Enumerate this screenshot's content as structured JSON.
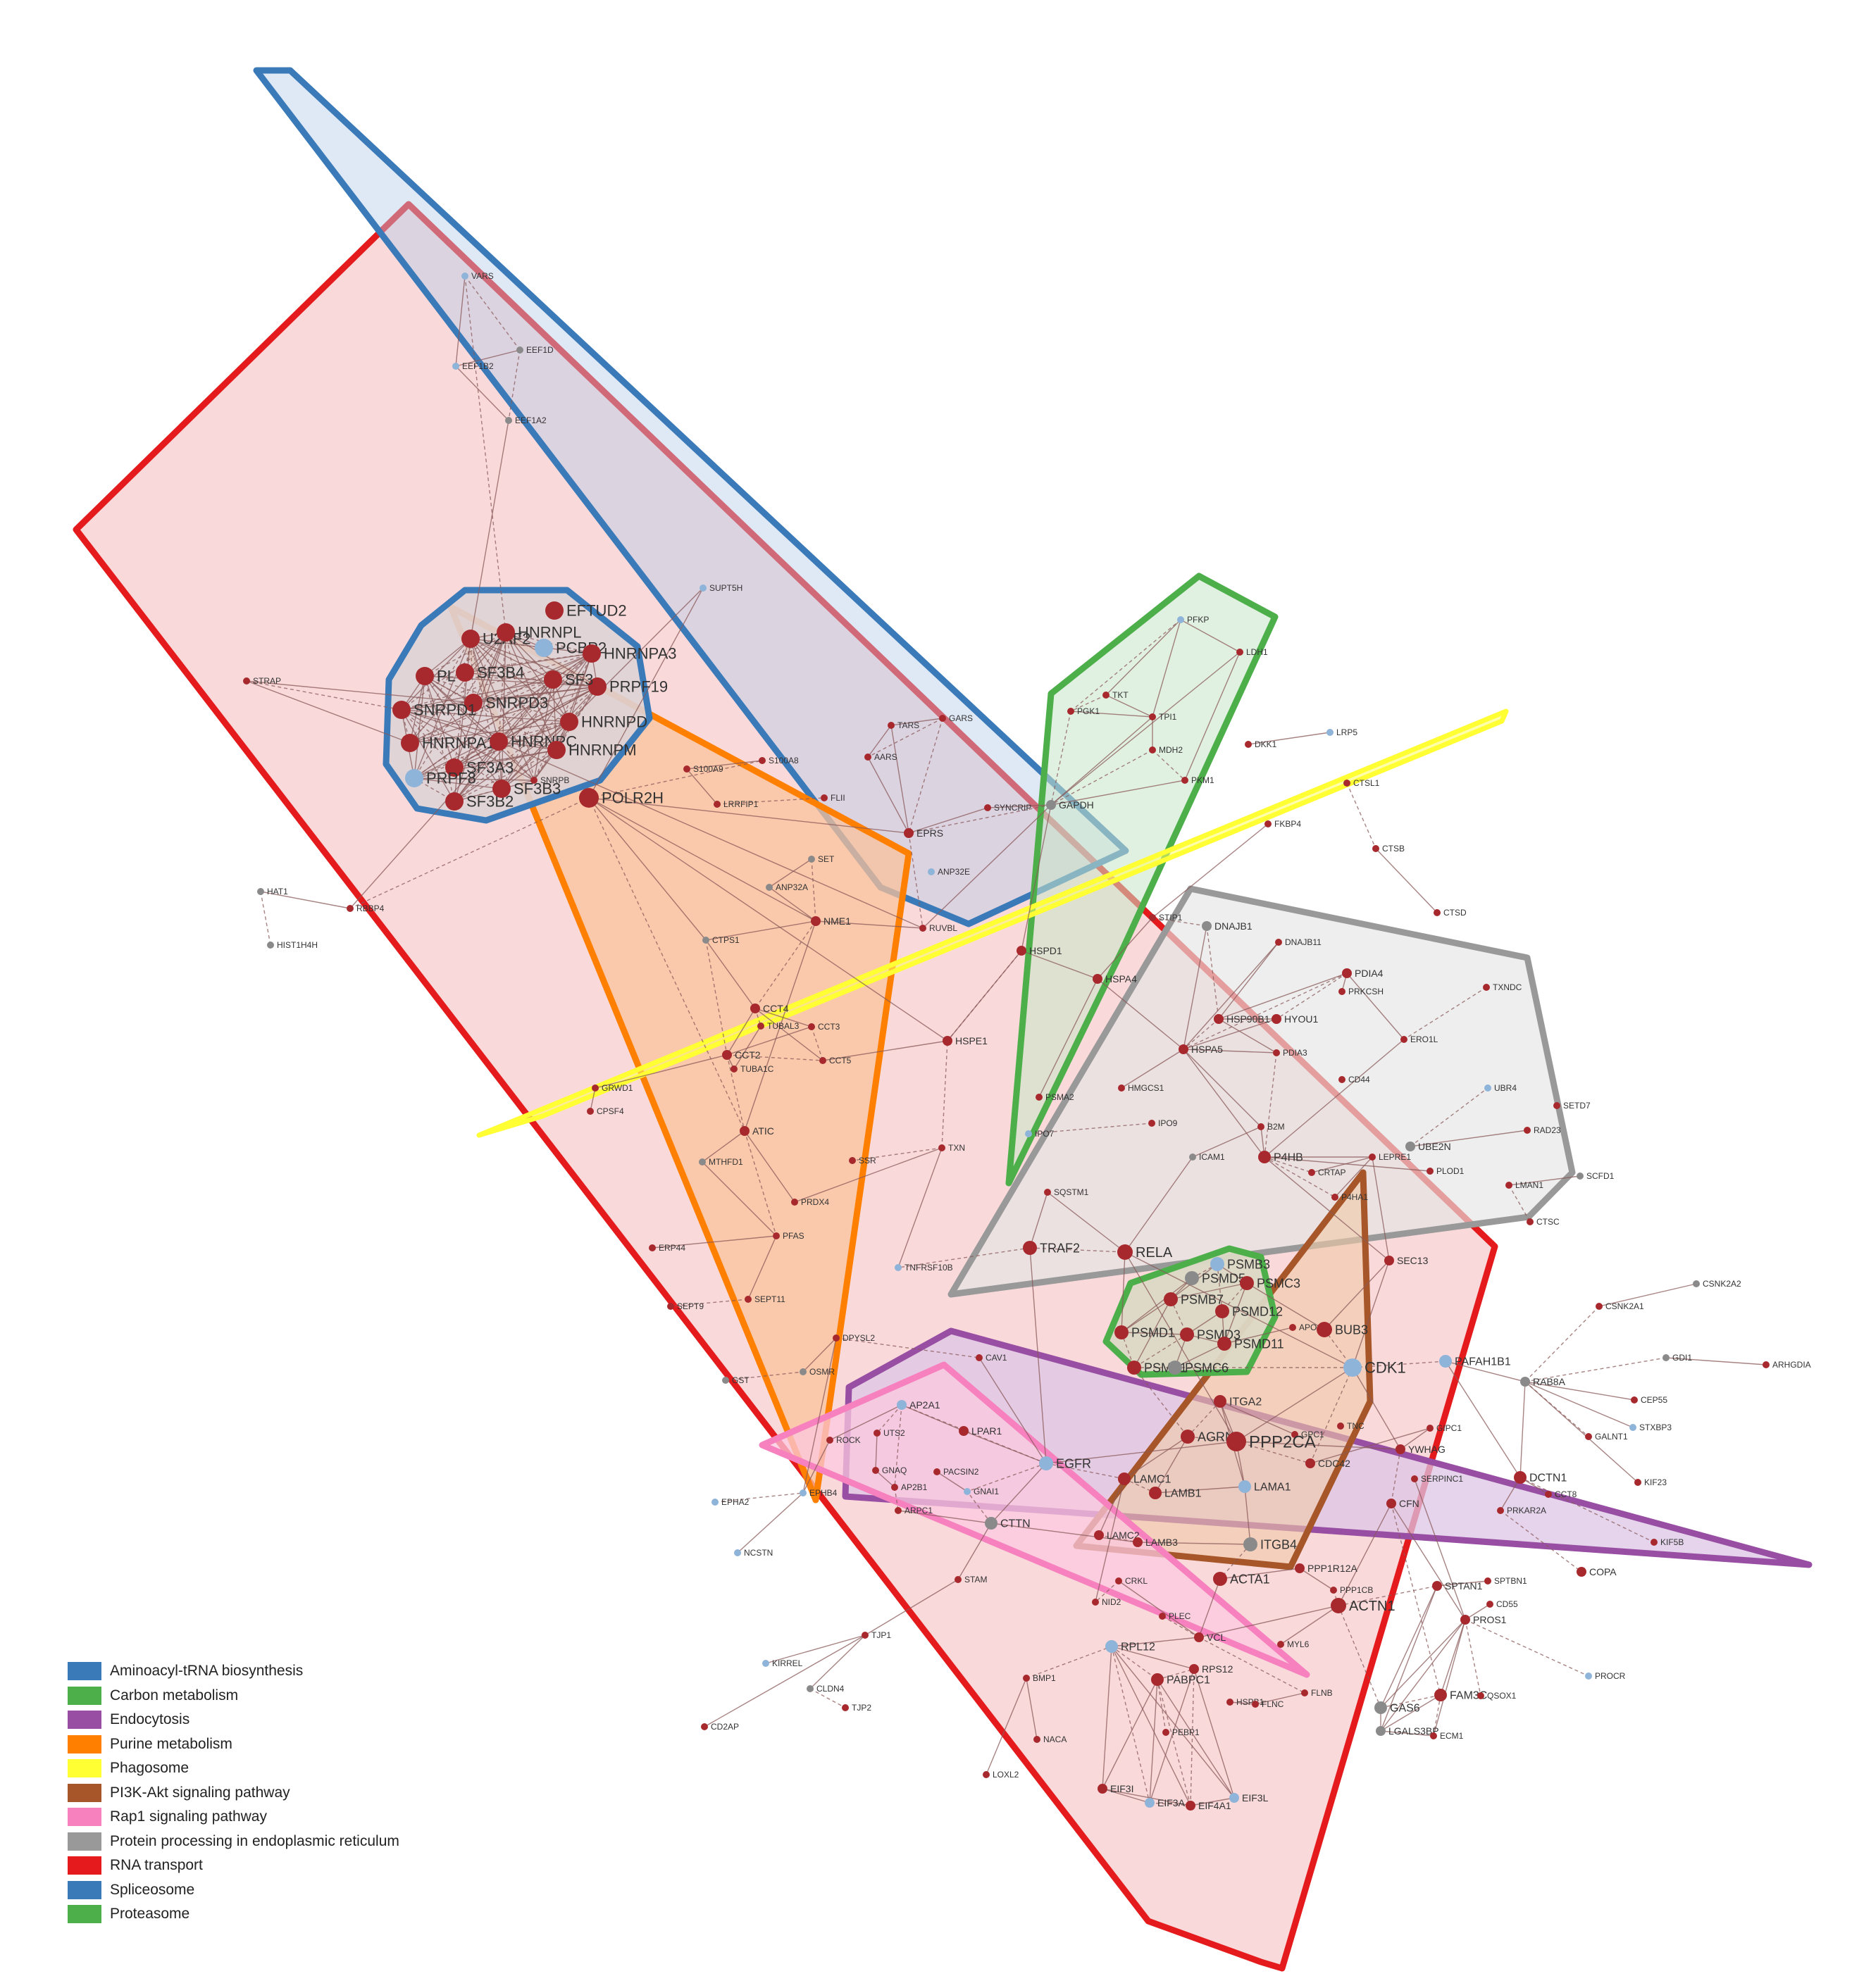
{
  "pathways": [
    {
      "name": "Aminoacyl-tRNA biosynthesis",
      "color": "#3a7ab8"
    },
    {
      "name": "Carbon metabolism",
      "color": "#4daf4a"
    },
    {
      "name": "Endocytosis",
      "color": "#984ea3"
    },
    {
      "name": "Purine metabolism",
      "color": "#ff7f00"
    },
    {
      "name": "Phagosome",
      "color": "#ffff33"
    },
    {
      "name": "PI3K-Akt signaling pathway",
      "color": "#a65628"
    },
    {
      "name": "Rap1 signaling pathway",
      "color": "#f781bf"
    },
    {
      "name": "Protein processing in endoplasmic reticulum",
      "color": "#999999"
    },
    {
      "name": "RNA transport",
      "color": "#e41a1c"
    },
    {
      "name": "Spliceosome",
      "color": "#3a7ab8"
    },
    {
      "name": "Proteasome",
      "color": "#4daf4a"
    }
  ],
  "colors": {
    "dark_red": "#a8292d",
    "light_blue": "#8fb4d9",
    "gray": "#8a8a8a",
    "edge": "#8a5a5a"
  },
  "nodes": [
    {
      "label": "VARS",
      "c": "lb"
    },
    {
      "label": "EEF1B2",
      "c": "lb"
    },
    {
      "label": "EEF1D",
      "c": "g"
    },
    {
      "label": "EEF1A2",
      "c": "g"
    },
    {
      "label": "SUPT5H",
      "c": "lb"
    },
    {
      "label": "STRAP",
      "c": "r"
    },
    {
      "label": "EFTUD2",
      "c": "r"
    },
    {
      "label": "U2AF2",
      "c": "r"
    },
    {
      "label": "HNRNPL",
      "c": "r"
    },
    {
      "label": "PCBP2",
      "c": "lb"
    },
    {
      "label": "HNRNPA3",
      "c": "r"
    },
    {
      "label": "PRPF19",
      "c": "r"
    },
    {
      "label": "SF3B4",
      "c": "r"
    },
    {
      "label": "PL",
      "c": "r"
    },
    {
      "label": "SF3",
      "c": "r"
    },
    {
      "label": "SNRPD3",
      "c": "r"
    },
    {
      "label": "SNRPD1",
      "c": "r"
    },
    {
      "label": "HNRNPD",
      "c": "r"
    },
    {
      "label": "HNRNPA1",
      "c": "r"
    },
    {
      "label": "HNRNPC",
      "c": "r"
    },
    {
      "label": "HNRNPM",
      "c": "r"
    },
    {
      "label": "SF3A3",
      "c": "r"
    },
    {
      "label": "PRPF8",
      "c": "lb"
    },
    {
      "label": "SF3B2",
      "c": "r"
    },
    {
      "label": "SF3B3",
      "c": "r"
    },
    {
      "label": "POLR2H",
      "c": "r"
    },
    {
      "label": "SNRPB",
      "c": "r"
    },
    {
      "label": "S100A8",
      "c": "r"
    },
    {
      "label": "S100A9",
      "c": "r"
    },
    {
      "label": "LRRFIP1",
      "c": "r"
    },
    {
      "label": "FLII",
      "c": "r"
    },
    {
      "label": "TARS",
      "c": "r"
    },
    {
      "label": "GARS",
      "c": "r"
    },
    {
      "label": "AARS",
      "c": "r"
    },
    {
      "label": "EPRS",
      "c": "r"
    },
    {
      "label": "SYNCRIP",
      "c": "r"
    },
    {
      "label": "SET",
      "c": "g"
    },
    {
      "label": "ANP32A",
      "c": "g"
    },
    {
      "label": "ANP32E",
      "c": "lb"
    },
    {
      "label": "NME1",
      "c": "r"
    },
    {
      "label": "RUVBL",
      "c": "r"
    },
    {
      "label": "CTPS1",
      "c": "g"
    },
    {
      "label": "HAT1",
      "c": "g"
    },
    {
      "label": "RBBP4",
      "c": "r"
    },
    {
      "label": "HIST1H4H",
      "c": "g"
    },
    {
      "label": "CCT4",
      "c": "r"
    },
    {
      "label": "TUBAL3",
      "c": "r"
    },
    {
      "label": "CCT3",
      "c": "r"
    },
    {
      "label": "CCT5",
      "c": "r"
    },
    {
      "label": "CCT2",
      "c": "r"
    },
    {
      "label": "TUBA1C",
      "c": "r"
    },
    {
      "label": "GRWD1",
      "c": "r"
    },
    {
      "label": "CPSF4",
      "c": "r"
    },
    {
      "label": "ATIC",
      "c": "r"
    },
    {
      "label": "MTHFD1",
      "c": "g"
    },
    {
      "label": "HSPE1",
      "c": "r"
    },
    {
      "label": "TXN",
      "c": "r"
    },
    {
      "label": "PRDX4",
      "c": "r"
    },
    {
      "label": "SSR",
      "c": "r"
    },
    {
      "label": "PFAS",
      "c": "r"
    },
    {
      "label": "ERP44",
      "c": "r"
    },
    {
      "label": "SEPT11",
      "c": "r"
    },
    {
      "label": "SEPT9",
      "c": "r"
    },
    {
      "label": "DPYSL2",
      "c": "r"
    },
    {
      "label": "GST",
      "c": "g"
    },
    {
      "label": "OSMR",
      "c": "g"
    },
    {
      "label": "PFKP",
      "c": "lb"
    },
    {
      "label": "LDH1",
      "c": "r"
    },
    {
      "label": "TKT",
      "c": "r"
    },
    {
      "label": "PGK1",
      "c": "r"
    },
    {
      "label": "TPI1",
      "c": "r"
    },
    {
      "label": "MDH2",
      "c": "r"
    },
    {
      "label": "DKK1",
      "c": "r"
    },
    {
      "label": "LRP5",
      "c": "lb"
    },
    {
      "label": "PKM1",
      "c": "r"
    },
    {
      "label": "GAPDH",
      "c": "g"
    },
    {
      "label": "CTSL1",
      "c": "r"
    },
    {
      "label": "CTSB",
      "c": "r"
    },
    {
      "label": "CTSD",
      "c": "r"
    },
    {
      "label": "FKBP4",
      "c": "r"
    },
    {
      "label": "STIP1",
      "c": "r"
    },
    {
      "label": "DNAJB1",
      "c": "g"
    },
    {
      "label": "DNAJB11",
      "c": "r"
    },
    {
      "label": "HSPD1",
      "c": "r"
    },
    {
      "label": "HSPA4",
      "c": "r"
    },
    {
      "label": "PDIA4",
      "c": "r"
    },
    {
      "label": "PRKCSH",
      "c": "r"
    },
    {
      "label": "TXNDC",
      "c": "r"
    },
    {
      "label": "HSP90B1",
      "c": "r"
    },
    {
      "label": "HYOU1",
      "c": "r"
    },
    {
      "label": "HSPA5",
      "c": "r"
    },
    {
      "label": "PDIA3",
      "c": "r"
    },
    {
      "label": "ERO1L",
      "c": "r"
    },
    {
      "label": "CD44",
      "c": "r"
    },
    {
      "label": "UBR4",
      "c": "lb"
    },
    {
      "label": "HMGCS1",
      "c": "r"
    },
    {
      "label": "PSMA2",
      "c": "r"
    },
    {
      "label": "IPO7",
      "c": "lb"
    },
    {
      "label": "IPO9",
      "c": "r"
    },
    {
      "label": "B2M",
      "c": "r"
    },
    {
      "label": "SETD7",
      "c": "r"
    },
    {
      "label": "RAD23",
      "c": "r"
    },
    {
      "label": "ICAM1",
      "c": "g"
    },
    {
      "label": "P4HB",
      "c": "r"
    },
    {
      "label": "CRTAP",
      "c": "r"
    },
    {
      "label": "LEPRE1",
      "c": "r"
    },
    {
      "label": "UBE2N",
      "c": "g"
    },
    {
      "label": "PLOD1",
      "c": "r"
    },
    {
      "label": "P4HA1",
      "c": "r"
    },
    {
      "label": "LMAN1",
      "c": "r"
    },
    {
      "label": "SCFD1",
      "c": "g"
    },
    {
      "label": "CTSC",
      "c": "r"
    },
    {
      "label": "SQSTM1",
      "c": "r"
    },
    {
      "label": "TRAF2",
      "c": "r"
    },
    {
      "label": "RELA",
      "c": "r"
    },
    {
      "label": "TNFRSF10B",
      "c": "lb"
    },
    {
      "label": "PSMB3",
      "c": "lb"
    },
    {
      "label": "PSMD5",
      "c": "g"
    },
    {
      "label": "PSMC3",
      "c": "r"
    },
    {
      "label": "PSMB7",
      "c": "r"
    },
    {
      "label": "PSMD12",
      "c": "r"
    },
    {
      "label": "PSMD1",
      "c": "r"
    },
    {
      "label": "PSMD3",
      "c": "r"
    },
    {
      "label": "PSMD11",
      "c": "r"
    },
    {
      "label": "PSMA1",
      "c": "r"
    },
    {
      "label": "PSMC6",
      "c": "g"
    },
    {
      "label": "APOA1",
      "c": "r"
    },
    {
      "label": "BUB3",
      "c": "r"
    },
    {
      "label": "SEC13",
      "c": "r"
    },
    {
      "label": "CDK1",
      "c": "lb"
    },
    {
      "label": "PAFAH1B1",
      "c": "lb"
    },
    {
      "label": "RAB8A",
      "c": "g"
    },
    {
      "label": "GDI1",
      "c": "g"
    },
    {
      "label": "ARHGDIA",
      "c": "r"
    },
    {
      "label": "CSNK2A2",
      "c": "g"
    },
    {
      "label": "CSNK2A1",
      "c": "r"
    },
    {
      "label": "CEP55",
      "c": "r"
    },
    {
      "label": "STXBP3",
      "c": "lb"
    },
    {
      "label": "GALNT1",
      "c": "r"
    },
    {
      "label": "KIF23",
      "c": "r"
    },
    {
      "label": "KIF5B",
      "c": "r"
    },
    {
      "label": "DCTN1",
      "c": "r"
    },
    {
      "label": "CCT8",
      "c": "r"
    },
    {
      "label": "GIPC1",
      "c": "r"
    },
    {
      "label": "YWHAG",
      "c": "r"
    },
    {
      "label": "SERPINC1",
      "c": "r"
    },
    {
      "label": "PRKAR2A",
      "c": "r"
    },
    {
      "label": "COPA",
      "c": "r"
    },
    {
      "label": "CAV1",
      "c": "r"
    },
    {
      "label": "ITGA2",
      "c": "r"
    },
    {
      "label": "GPC1",
      "c": "r"
    },
    {
      "label": "TNC",
      "c": "r"
    },
    {
      "label": "AGRN",
      "c": "r"
    },
    {
      "label": "PPP2CA",
      "c": "r"
    },
    {
      "label": "CDC42",
      "c": "r"
    },
    {
      "label": "CFN",
      "c": "r"
    },
    {
      "label": "LAMC1",
      "c": "r"
    },
    {
      "label": "LAMB1",
      "c": "r"
    },
    {
      "label": "LAMA1",
      "c": "lb"
    },
    {
      "label": "LAMC2",
      "c": "r"
    },
    {
      "label": "LAMB3",
      "c": "r"
    },
    {
      "label": "ITGB4",
      "c": "g"
    },
    {
      "label": "ACTA1",
      "c": "r"
    },
    {
      "label": "PPP1R12A",
      "c": "r"
    },
    {
      "label": "PPP1CB",
      "c": "r"
    },
    {
      "label": "ACTN1",
      "c": "r"
    },
    {
      "label": "MYL6",
      "c": "r"
    },
    {
      "label": "CRKL",
      "c": "r"
    },
    {
      "label": "NID2",
      "c": "r"
    },
    {
      "label": "PLEC",
      "c": "r"
    },
    {
      "label": "VCL",
      "c": "r"
    },
    {
      "label": "AP2A1",
      "c": "lb"
    },
    {
      "label": "LPAR1",
      "c": "r"
    },
    {
      "label": "ROCK",
      "c": "r"
    },
    {
      "label": "UTS2",
      "c": "r"
    },
    {
      "label": "GNAQ",
      "c": "r"
    },
    {
      "label": "PACSIN2",
      "c": "r"
    },
    {
      "label": "EGFR",
      "c": "lb"
    },
    {
      "label": "AP2B1",
      "c": "r"
    },
    {
      "label": "GNAI1",
      "c": "lb"
    },
    {
      "label": "ARPC1",
      "c": "r"
    },
    {
      "label": "CTTN",
      "c": "g"
    },
    {
      "label": "EPHA2",
      "c": "lb"
    },
    {
      "label": "EPHB4",
      "c": "lb"
    },
    {
      "label": "NCSTN",
      "c": "lb"
    },
    {
      "label": "STAM",
      "c": "r"
    },
    {
      "label": "SPTAN1",
      "c": "r"
    },
    {
      "label": "SPTBN1",
      "c": "r"
    },
    {
      "label": "CD55",
      "c": "r"
    },
    {
      "label": "PROS1",
      "c": "r"
    },
    {
      "label": "PROCR",
      "c": "lb"
    },
    {
      "label": "RPL12",
      "c": "lb"
    },
    {
      "label": "PABPC1",
      "c": "r"
    },
    {
      "label": "RPS12",
      "c": "r"
    },
    {
      "label": "HSPB1",
      "c": "r"
    },
    {
      "label": "FLNC",
      "c": "r"
    },
    {
      "label": "FLNB",
      "c": "r"
    },
    {
      "label": "PEBP1",
      "c": "r"
    },
    {
      "label": "BMP1",
      "c": "r"
    },
    {
      "label": "NACA",
      "c": "r"
    },
    {
      "label": "LOXL2",
      "c": "r"
    },
    {
      "label": "EIF3L",
      "c": "lb"
    },
    {
      "label": "EIF3A",
      "c": "lb"
    },
    {
      "label": "EIF4A1",
      "c": "r"
    },
    {
      "label": "EIF3I",
      "c": "r"
    },
    {
      "label": "GAS6",
      "c": "g"
    },
    {
      "label": "FAM3C",
      "c": "r"
    },
    {
      "label": "QSOX1",
      "c": "r"
    },
    {
      "label": "LGALS3BP",
      "c": "g"
    },
    {
      "label": "ECM1",
      "c": "r"
    },
    {
      "label": "TJP1",
      "c": "r"
    },
    {
      "label": "KIRREL",
      "c": "lb"
    },
    {
      "label": "CLDN4",
      "c": "g"
    },
    {
      "label": "TJP2",
      "c": "r"
    },
    {
      "label": "CD2AP",
      "c": "r"
    }
  ]
}
